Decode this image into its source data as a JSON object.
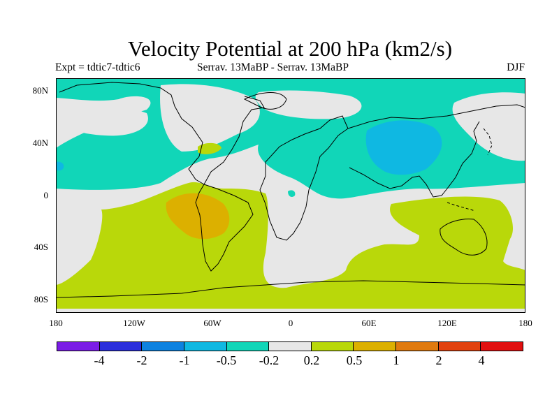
{
  "title": "Velocity Potential at 200 hPa (km2/s)",
  "subtitle": {
    "left": "Expt = tdtic7-tdtic6",
    "center": "Serrav.   13MaBP - Serrav.   13MaBP",
    "right": "DJF"
  },
  "axes": {
    "y_ticks": [
      "80N",
      "40N",
      "0",
      "40S",
      "80S"
    ],
    "x_ticks": [
      "180",
      "120W",
      "60W",
      "0",
      "60E",
      "120E",
      "180"
    ]
  },
  "colorbar": {
    "colors": [
      "#7b1de6",
      "#2b2fdc",
      "#0d82e0",
      "#0fb8e2",
      "#11d6b8",
      "#e7e7e7",
      "#b9d80a",
      "#dcb000",
      "#e07a0e",
      "#e2420e",
      "#e10f0f"
    ],
    "labels": [
      "-4",
      "-2",
      "-1",
      "-0.5",
      "-0.2",
      "0.2",
      "0.5",
      "1",
      "2",
      "4"
    ]
  },
  "map_colors": {
    "neutral": "#e7e7e7",
    "weak_negative": "#11d6b8",
    "moderate_negative": "#0fb8e2",
    "weak_positive": "#b9d80a",
    "moderate_positive": "#dcb000",
    "coastline": "#000000"
  }
}
